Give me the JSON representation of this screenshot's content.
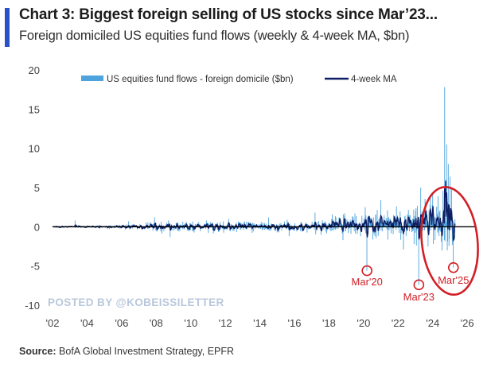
{
  "header": {
    "title": "Chart 3: Biggest foreign selling of US stocks since Mar’23...",
    "subtitle": "Foreign domiciled US equities fund flows (weekly & 4-week MA, $bn)"
  },
  "footer": {
    "source_label": "Source:",
    "source_text": "BofA Global Investment Strategy, EPFR"
  },
  "watermark": "POSTED BY @KOBEISSILETTER",
  "colors": {
    "accent": "#2952c8",
    "weekly_series": "#4fa3dd",
    "ma_series": "#0d1e63",
    "axis": "#000000",
    "annotation": "#d21f26"
  },
  "chart_data": {
    "type": "bar",
    "title": "Chart 3: Biggest foreign selling of US stocks since Mar’23...",
    "subtitle": "Foreign domiciled US equities fund flows (weekly & 4-week MA, $bn)",
    "xlabel": "",
    "ylabel": "",
    "xlim": [
      2002,
      2026.5
    ],
    "ylim": [
      -10,
      20
    ],
    "x_ticks": [
      2002,
      2004,
      2006,
      2008,
      2010,
      2012,
      2014,
      2016,
      2018,
      2020,
      2022,
      2024,
      2026
    ],
    "x_tick_labels": [
      "'02",
      "'04",
      "'06",
      "'08",
      "'10",
      "'12",
      "'14",
      "'16",
      "'18",
      "'20",
      "'22",
      "'24",
      "'26"
    ],
    "y_ticks": [
      -10,
      -5,
      0,
      5,
      10,
      15,
      20
    ],
    "y_tick_labels": [
      "-10",
      "-5",
      "0",
      "5",
      "10",
      "15",
      "20"
    ],
    "grid": false,
    "legend_position": "top",
    "legend": [
      {
        "label": "US equities fund flows - foreign domicile ($bn)",
        "style": "bar",
        "color": "#4fa3dd"
      },
      {
        "label": "4-week MA",
        "style": "line",
        "color": "#0d1e63"
      }
    ],
    "series": [
      {
        "name": "US equities fund flows - foreign domicile ($bn)",
        "type": "bar",
        "color": "#4fa3dd",
        "amplitude_profile": [
          [
            2002.0,
            0.12
          ],
          [
            2005.0,
            0.3
          ],
          [
            2007.0,
            0.5
          ],
          [
            2008.5,
            0.9
          ],
          [
            2011.0,
            0.8
          ],
          [
            2013.0,
            0.9
          ],
          [
            2015.0,
            0.85
          ],
          [
            2017.0,
            1.0
          ],
          [
            2019.0,
            1.3
          ],
          [
            2020.0,
            2.0
          ],
          [
            2021.0,
            2.4
          ],
          [
            2022.5,
            2.6
          ],
          [
            2023.5,
            3.2
          ],
          [
            2024.5,
            4.0
          ],
          [
            2025.3,
            4.0
          ]
        ],
        "highlights": [
          [
            2003.3,
            0.8
          ],
          [
            2006.4,
            0.7
          ],
          [
            2007.9,
            1.2
          ],
          [
            2008.8,
            -1.3
          ],
          [
            2012.2,
            1.0
          ],
          [
            2014.5,
            1.2
          ],
          [
            2015.7,
            -1.2
          ],
          [
            2017.2,
            1.8
          ],
          [
            2018.2,
            1.6
          ],
          [
            2018.8,
            -1.7
          ],
          [
            2019.5,
            1.7
          ],
          [
            2020.1,
            2.5
          ],
          [
            2020.2,
            -5.6
          ],
          [
            2021.0,
            3.4
          ],
          [
            2021.9,
            2.6
          ],
          [
            2022.3,
            -2.9
          ],
          [
            2022.9,
            2.2
          ],
          [
            2023.2,
            -7.4
          ],
          [
            2023.3,
            5.0
          ],
          [
            2023.6,
            3.1
          ],
          [
            2024.0,
            4.3
          ],
          [
            2024.3,
            3.9
          ],
          [
            2024.5,
            -1.9
          ],
          [
            2024.6,
            4.6
          ],
          [
            2024.7,
            17.8
          ],
          [
            2024.75,
            6.0
          ],
          [
            2024.8,
            10.5
          ],
          [
            2024.85,
            -3.0
          ],
          [
            2024.9,
            8.0
          ],
          [
            2025.0,
            6.4
          ],
          [
            2025.1,
            4.8
          ],
          [
            2025.2,
            -5.2
          ]
        ]
      },
      {
        "name": "4-week MA",
        "type": "line",
        "color": "#0d1e63",
        "note": "4-week moving average of the weekly flows",
        "window_weeks": 4
      }
    ],
    "annotations": [
      {
        "label": "Mar'20",
        "x": 2020.2,
        "y": -5.6
      },
      {
        "label": "Mar'23",
        "x": 2023.2,
        "y": -7.4
      },
      {
        "label": "Mar'25",
        "x": 2025.2,
        "y": -5.2
      }
    ]
  }
}
